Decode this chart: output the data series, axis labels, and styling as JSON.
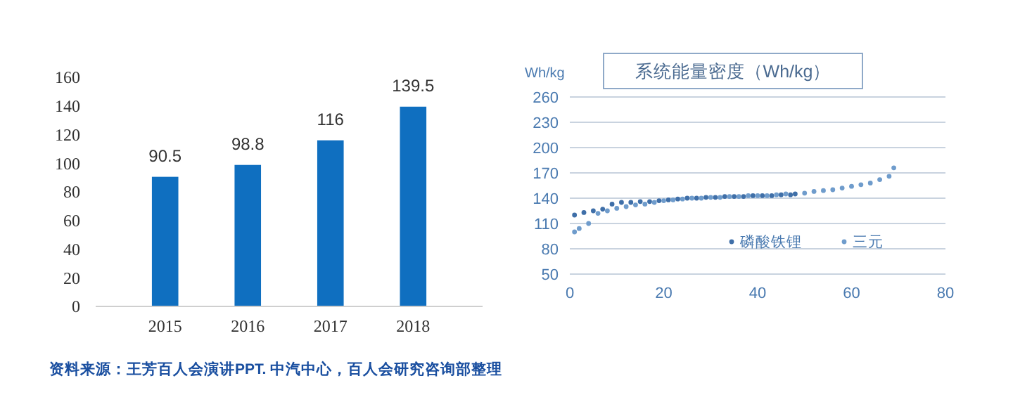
{
  "chart_data": [
    {
      "type": "bar",
      "categories": [
        "2015",
        "2016",
        "2017",
        "2018"
      ],
      "values": [
        90.5,
        98.8,
        116,
        139.5
      ],
      "color": "#0f6fc0",
      "ylim": [
        0,
        160
      ],
      "yticks": [
        0,
        20,
        40,
        60,
        80,
        100,
        120,
        140,
        160
      ],
      "data_labels": true,
      "annotations": [
        "资料来源：王芳百人会演讲PPT. 中汽中心，百人会研究咨询部整理"
      ]
    },
    {
      "type": "scatter",
      "title": "系统能量密度（Wh/kg）",
      "ylabel": "Wh/kg",
      "xlim": [
        0,
        80
      ],
      "xticks": [
        0,
        20,
        40,
        60,
        80
      ],
      "ylim": [
        50,
        260
      ],
      "yticks": [
        50,
        80,
        110,
        140,
        170,
        200,
        230,
        260
      ],
      "grid": "y",
      "legend": "bottom right",
      "marker": "circle",
      "series": [
        {
          "name": "磷酸铁锂",
          "color": "#3f6fa8",
          "x": [
            1,
            3,
            5,
            7,
            9,
            11,
            13,
            15,
            17,
            19,
            21,
            23,
            25,
            27,
            29,
            31,
            33,
            35,
            37,
            39,
            41,
            43,
            45,
            47,
            48
          ],
          "values": [
            120,
            123,
            125,
            127,
            133,
            135,
            135,
            136,
            136,
            137,
            138,
            139,
            140,
            140,
            141,
            141,
            142,
            142,
            142,
            143,
            143,
            143,
            144,
            144,
            145
          ]
        },
        {
          "name": "三元",
          "color": "#6f9ccc",
          "x": [
            1,
            2,
            4,
            6,
            8,
            10,
            12,
            14,
            16,
            18,
            20,
            22,
            24,
            26,
            28,
            30,
            32,
            34,
            36,
            38,
            40,
            42,
            44,
            46,
            50,
            52,
            54,
            56,
            58,
            60,
            62,
            64,
            66,
            68,
            69
          ],
          "values": [
            100,
            104,
            110,
            122,
            125,
            128,
            130,
            132,
            133,
            135,
            137,
            138,
            139,
            140,
            140,
            141,
            141,
            142,
            142,
            143,
            143,
            143,
            144,
            145,
            146,
            148,
            149,
            150,
            152,
            154,
            156,
            158,
            162,
            166,
            176
          ]
        }
      ]
    }
  ]
}
